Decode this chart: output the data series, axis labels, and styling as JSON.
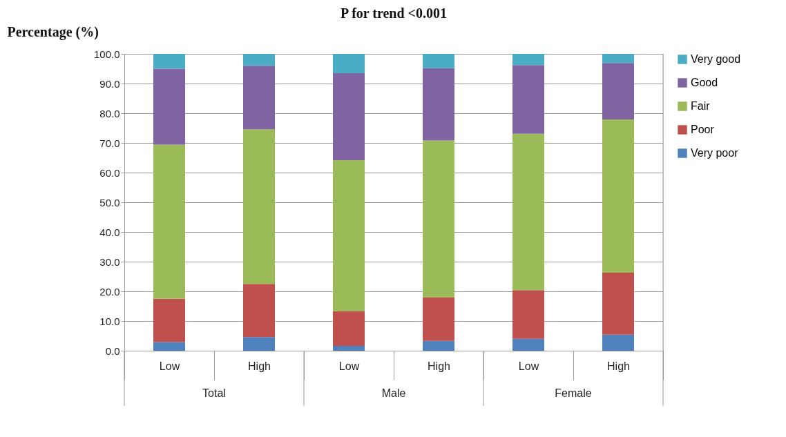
{
  "chart_data": {
    "type": "bar",
    "title": "P for trend <0.001",
    "ylabel": "Percentage (%)",
    "categories": [
      "Low",
      "High",
      "Low",
      "High",
      "Low",
      "High"
    ],
    "annotations": [
      "Total",
      "Male",
      "Female"
    ],
    "stacked": true,
    "ylim": [
      0,
      100
    ],
    "yticks": [
      {
        "value": 0,
        "label": "0.0"
      },
      {
        "value": 10,
        "label": "10.0"
      },
      {
        "value": 20,
        "label": "20.0"
      },
      {
        "value": 30,
        "label": "30.0"
      },
      {
        "value": 40,
        "label": "40.0"
      },
      {
        "value": 50,
        "label": "50.0"
      },
      {
        "value": 60,
        "label": "60.0"
      },
      {
        "value": 70,
        "label": "70.0"
      },
      {
        "value": 80,
        "label": "80.0"
      },
      {
        "value": 90,
        "label": "90.0"
      },
      {
        "value": 100,
        "label": "100.0"
      }
    ],
    "grid": "y",
    "legend": "right",
    "series": [
      {
        "name": "Very poor",
        "color": "#4f81bd",
        "values": [
          2.9,
          4.6,
          1.6,
          3.3,
          4.0,
          5.4
        ]
      },
      {
        "name": "Poor",
        "color": "#c0504d",
        "values": [
          14.6,
          17.9,
          11.7,
          14.6,
          16.4,
          20.9
        ]
      },
      {
        "name": "Fair",
        "color": "#9bbb59",
        "values": [
          51.9,
          52.1,
          50.9,
          52.9,
          52.7,
          51.6
        ]
      },
      {
        "name": "Good",
        "color": "#8064a2",
        "values": [
          25.6,
          21.4,
          29.3,
          24.4,
          23.1,
          19.0
        ]
      },
      {
        "name": "Very good",
        "color": "#4bacc6",
        "values": [
          5.0,
          4.0,
          6.5,
          4.8,
          3.8,
          3.1
        ]
      }
    ]
  }
}
